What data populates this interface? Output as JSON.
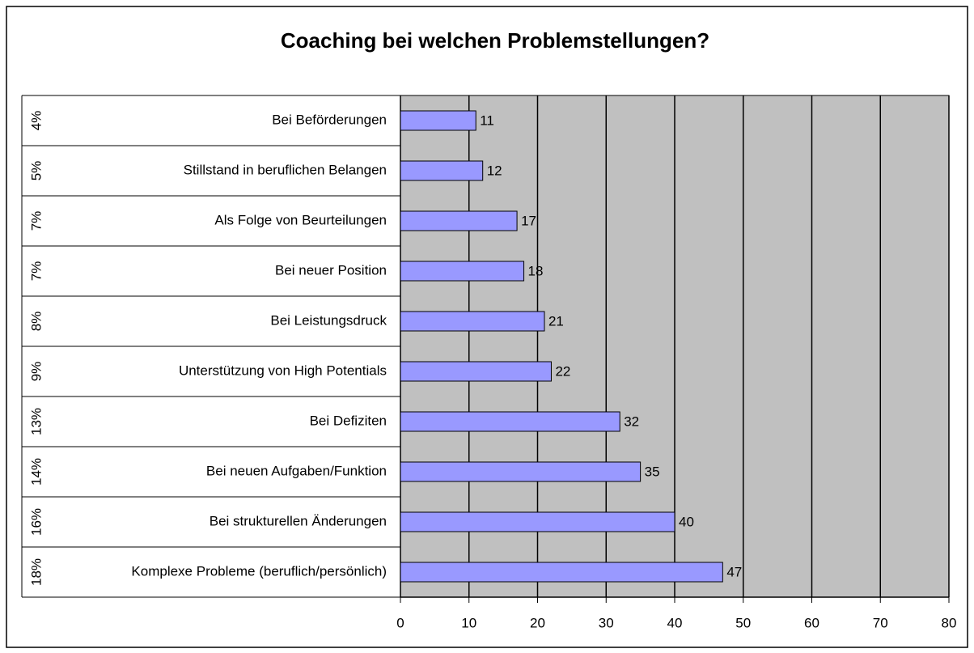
{
  "chart_data": {
    "type": "barh",
    "title": "Coaching bei welchen Problemstellungen?",
    "categories": [
      "Bei Beförderungen",
      "Stillstand in beruflichen Belangen",
      "Als Folge von Beurteilungen",
      "Bei neuer Position",
      "Bei Leistungsdruck",
      "Unterstützung von High Potentials",
      "Bei Defiziten",
      "Bei neuen Aufgaben/Funktion",
      "Bei strukturellen Änderungen",
      "Komplexe Probleme (beruflich/persönlich)"
    ],
    "share_labels": [
      "4%",
      "5%",
      "7%",
      "7%",
      "8%",
      "9%",
      "13%",
      "14%",
      "16%",
      "18%"
    ],
    "values": [
      11,
      12,
      17,
      18,
      21,
      22,
      32,
      35,
      40,
      47
    ],
    "color": "#9999ff",
    "xlim": [
      0,
      80
    ],
    "xticks": [
      0,
      10,
      20,
      30,
      40,
      50,
      60,
      70,
      80
    ],
    "grid": true
  }
}
